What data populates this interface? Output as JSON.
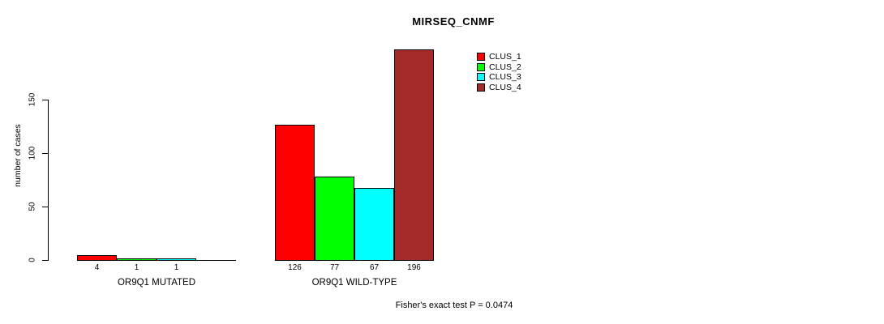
{
  "title": "MIRSEQ_CNMF",
  "footer": "Fisher's exact test P = 0.0474",
  "chart_data": {
    "type": "bar",
    "title": "MIRSEQ_CNMF",
    "ylabel": "number of cases",
    "xlabel": "",
    "ylim": [
      0,
      200
    ],
    "yticks": [
      0,
      50,
      100,
      150
    ],
    "grid": false,
    "legend_position": "top-right",
    "categories": [
      "OR9Q1 MUTATED",
      "OR9Q1 WILD-TYPE"
    ],
    "series": [
      {
        "name": "CLUS_1",
        "color": "#ff0000",
        "values": [
          4,
          126
        ]
      },
      {
        "name": "CLUS_2",
        "color": "#00ff00",
        "values": [
          1,
          77
        ]
      },
      {
        "name": "CLUS_3",
        "color": "#00ffff",
        "values": [
          1,
          67
        ]
      },
      {
        "name": "CLUS_4",
        "color": "#a52a2a",
        "values": [
          0,
          196
        ]
      }
    ],
    "bar_value_labels": [
      [
        "4",
        "1",
        "1",
        ""
      ],
      [
        "126",
        "77",
        "67",
        "196"
      ]
    ],
    "annotation": "Fisher's exact test P = 0.0474"
  }
}
